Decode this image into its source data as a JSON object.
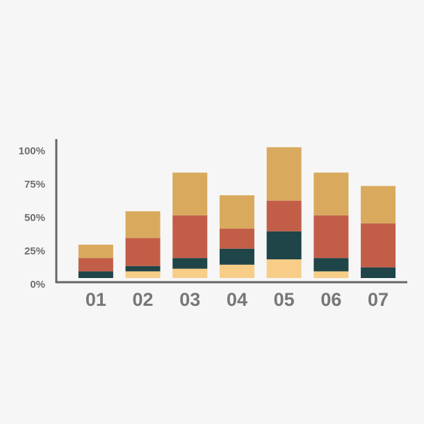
{
  "chart_data": {
    "type": "stacked_bar",
    "categories": [
      "01",
      "02",
      "03",
      "04",
      "05",
      "06",
      "07"
    ],
    "series": [
      {
        "color": "#f7cd88",
        "values": [
          0,
          5,
          7,
          10,
          14,
          5,
          0
        ]
      },
      {
        "color": "#1f4548",
        "values": [
          5,
          4,
          8,
          12,
          21,
          10,
          8
        ]
      },
      {
        "color": "#c25e48",
        "values": [
          10,
          21,
          32,
          15,
          23,
          32,
          33
        ]
      },
      {
        "color": "#d9aa5d",
        "values": [
          10,
          20,
          32,
          25,
          40,
          32,
          28
        ]
      }
    ],
    "ylim": [
      0,
      100
    ],
    "yticks": [
      {
        "value": 0,
        "label": "0%"
      },
      {
        "value": 25,
        "label": "25%"
      },
      {
        "value": 50,
        "label": "50%"
      },
      {
        "value": 75,
        "label": "75%"
      },
      {
        "value": 100,
        "label": "100%"
      }
    ]
  }
}
